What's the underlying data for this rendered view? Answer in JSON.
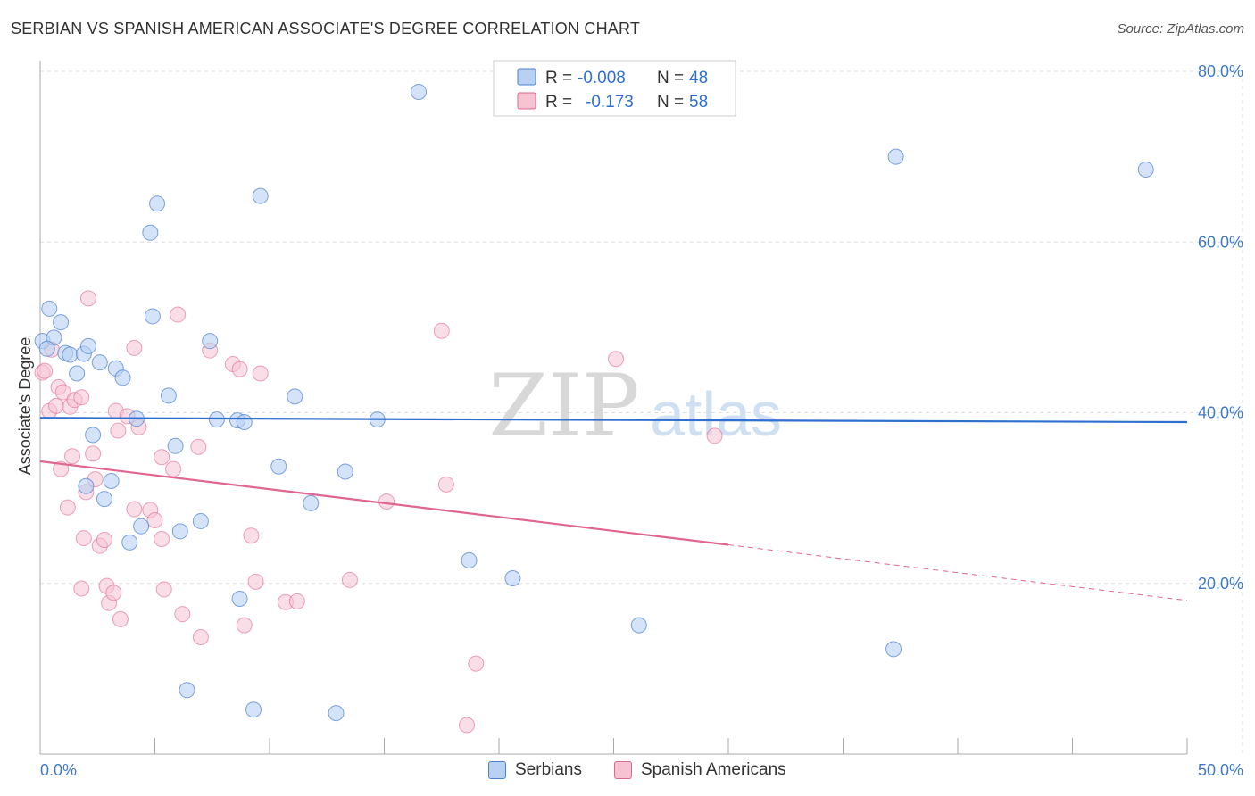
{
  "header": {
    "title": "SERBIAN VS SPANISH AMERICAN ASSOCIATE'S DEGREE CORRELATION CHART",
    "source": "Source: ZipAtlas.com"
  },
  "watermark": {
    "zip": "ZIP",
    "atlas": "atlas"
  },
  "colors": {
    "blue": "#4a7fd0",
    "blue_fill": "#b8d0f2",
    "pink": "#e0668f",
    "pink_fill": "#f6c3d3",
    "axis_label": "#3f79c9",
    "grid": "#dddddd"
  },
  "legend_top": {
    "rows": [
      {
        "r_label": "R =",
        "r_value": "-0.008",
        "n_label": "N =",
        "n_value": "48"
      },
      {
        "r_label": "R =",
        "r_value": "-0.173",
        "n_label": "N =",
        "n_value": "58"
      }
    ]
  },
  "legend_bottom": {
    "items": [
      "Serbians",
      "Spanish Americans"
    ]
  },
  "chart_data": {
    "type": "scatter",
    "title": "SERBIAN VS SPANISH AMERICAN ASSOCIATE'S DEGREE CORRELATION CHART",
    "xlabel": "",
    "ylabel": "Associate's Degree",
    "xlim": [
      0,
      50
    ],
    "ylim": [
      0,
      80
    ],
    "x_tick_labels": [
      "0.0%",
      "50.0%"
    ],
    "y_ticks": [
      20,
      40,
      60,
      80
    ],
    "y_tick_labels": [
      "20.0%",
      "40.0%",
      "60.0%",
      "80.0%"
    ],
    "grid": true,
    "legend_position": "top-center",
    "series": [
      {
        "name": "Serbians",
        "r": -0.008,
        "n": 48,
        "trend": {
          "x0": 0,
          "y0": 39.4,
          "x1": 50,
          "y1": 38.9,
          "dashed_from": null
        },
        "points": [
          [
            0.1,
            48.4
          ],
          [
            0.4,
            52.2
          ],
          [
            0.6,
            48.8
          ],
          [
            0.9,
            50.6
          ],
          [
            1.1,
            47.0
          ],
          [
            1.3,
            46.8
          ],
          [
            1.6,
            44.6
          ],
          [
            1.9,
            46.9
          ],
          [
            2.1,
            47.8
          ],
          [
            2.3,
            37.4
          ],
          [
            2.6,
            45.9
          ],
          [
            2.8,
            29.9
          ],
          [
            3.1,
            32.0
          ],
          [
            3.3,
            45.2
          ],
          [
            3.6,
            44.1
          ],
          [
            3.9,
            24.8
          ],
          [
            4.2,
            39.3
          ],
          [
            4.4,
            26.7
          ],
          [
            4.8,
            61.1
          ],
          [
            4.9,
            51.3
          ],
          [
            5.1,
            64.5
          ],
          [
            5.6,
            42.0
          ],
          [
            6.1,
            26.1
          ],
          [
            6.4,
            7.5
          ],
          [
            7.0,
            27.3
          ],
          [
            7.4,
            48.4
          ],
          [
            7.7,
            39.2
          ],
          [
            8.6,
            39.1
          ],
          [
            8.9,
            38.9
          ],
          [
            8.7,
            18.2
          ],
          [
            9.3,
            5.2
          ],
          [
            9.6,
            65.4
          ],
          [
            10.4,
            33.7
          ],
          [
            11.1,
            41.9
          ],
          [
            11.8,
            29.4
          ],
          [
            12.9,
            4.8
          ],
          [
            13.3,
            33.1
          ],
          [
            14.7,
            39.2
          ],
          [
            16.5,
            77.6
          ],
          [
            18.7,
            22.7
          ],
          [
            20.6,
            20.6
          ],
          [
            26.1,
            15.1
          ],
          [
            37.3,
            70.0
          ],
          [
            37.2,
            12.3
          ],
          [
            48.2,
            68.5
          ],
          [
            0.3,
            47.5
          ],
          [
            5.9,
            36.1
          ],
          [
            2.0,
            31.4
          ]
        ]
      },
      {
        "name": "Spanish Americans",
        "r": -0.173,
        "n": 58,
        "trend": {
          "x0": 0,
          "y0": 34.3,
          "x1": 50,
          "y1": 18.0,
          "dashed_from": 30
        },
        "points": [
          [
            0.1,
            44.7
          ],
          [
            0.2,
            44.9
          ],
          [
            0.4,
            40.2
          ],
          [
            0.5,
            47.4
          ],
          [
            0.7,
            40.8
          ],
          [
            0.8,
            43.0
          ],
          [
            0.9,
            33.4
          ],
          [
            1.0,
            42.4
          ],
          [
            1.2,
            28.9
          ],
          [
            1.3,
            40.7
          ],
          [
            1.4,
            34.9
          ],
          [
            1.5,
            41.5
          ],
          [
            1.8,
            41.8
          ],
          [
            1.8,
            19.4
          ],
          [
            1.9,
            25.3
          ],
          [
            2.0,
            30.7
          ],
          [
            2.1,
            53.4
          ],
          [
            2.3,
            35.2
          ],
          [
            2.4,
            32.2
          ],
          [
            2.6,
            24.4
          ],
          [
            2.8,
            25.1
          ],
          [
            2.9,
            19.7
          ],
          [
            3.0,
            17.7
          ],
          [
            3.2,
            18.9
          ],
          [
            3.3,
            40.2
          ],
          [
            3.4,
            37.9
          ],
          [
            3.5,
            15.8
          ],
          [
            3.8,
            39.6
          ],
          [
            4.1,
            28.7
          ],
          [
            4.1,
            47.6
          ],
          [
            4.3,
            38.3
          ],
          [
            4.8,
            28.6
          ],
          [
            5.0,
            27.4
          ],
          [
            5.3,
            34.8
          ],
          [
            5.3,
            25.2
          ],
          [
            5.4,
            19.3
          ],
          [
            5.8,
            33.4
          ],
          [
            6.0,
            51.5
          ],
          [
            6.2,
            16.4
          ],
          [
            6.9,
            36.0
          ],
          [
            7.0,
            13.7
          ],
          [
            7.4,
            47.3
          ],
          [
            8.4,
            45.7
          ],
          [
            8.7,
            45.1
          ],
          [
            8.9,
            15.1
          ],
          [
            9.2,
            25.6
          ],
          [
            9.4,
            20.2
          ],
          [
            9.6,
            44.6
          ],
          [
            10.7,
            17.8
          ],
          [
            11.2,
            17.9
          ],
          [
            13.5,
            20.4
          ],
          [
            15.1,
            29.6
          ],
          [
            17.5,
            49.6
          ],
          [
            17.7,
            31.6
          ],
          [
            18.6,
            3.4
          ],
          [
            19.0,
            10.6
          ],
          [
            25.1,
            46.3
          ],
          [
            29.4,
            37.3
          ]
        ]
      }
    ]
  }
}
